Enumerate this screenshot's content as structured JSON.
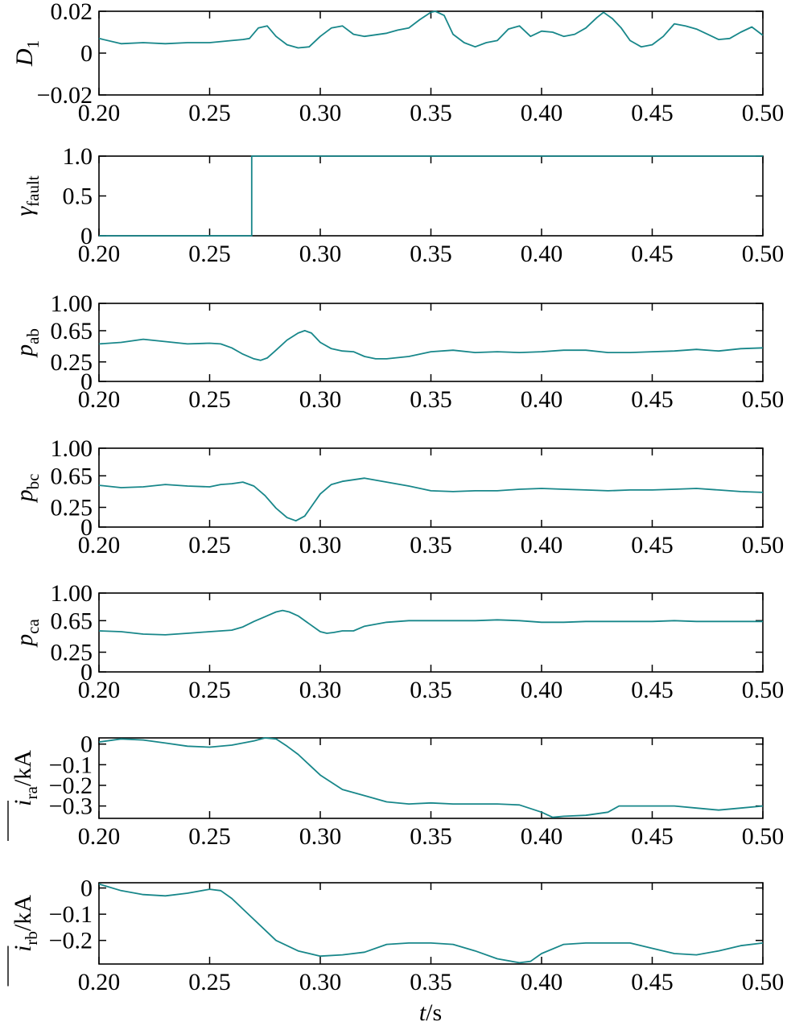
{
  "x_axis_label": {
    "var": "t",
    "unit": "/s"
  },
  "chart_data": [
    {
      "type": "line",
      "name": "D1",
      "ylabel": {
        "main": "D",
        "sub": "1",
        "suffix": ""
      },
      "xlim": [
        0.2,
        0.5
      ],
      "ylim": [
        -0.02,
        0.02
      ],
      "xticks": [
        0.2,
        0.25,
        0.3,
        0.35,
        0.4,
        0.45,
        0.5
      ],
      "xtick_labels": [
        "0.20",
        "0.25",
        "0.30",
        "0.35",
        "0.40",
        "0.45",
        "0.50"
      ],
      "yticks": [
        -0.02,
        0,
        0.02
      ],
      "ytick_labels": [
        "−0.02",
        "0",
        "0.02"
      ],
      "x": [
        0.2,
        0.21,
        0.22,
        0.23,
        0.24,
        0.25,
        0.26,
        0.265,
        0.268,
        0.272,
        0.276,
        0.28,
        0.285,
        0.29,
        0.295,
        0.3,
        0.305,
        0.31,
        0.315,
        0.32,
        0.33,
        0.335,
        0.34,
        0.345,
        0.35,
        0.352,
        0.356,
        0.36,
        0.365,
        0.37,
        0.375,
        0.38,
        0.385,
        0.39,
        0.395,
        0.4,
        0.405,
        0.41,
        0.415,
        0.42,
        0.425,
        0.428,
        0.432,
        0.436,
        0.44,
        0.445,
        0.45,
        0.455,
        0.46,
        0.465,
        0.47,
        0.475,
        0.48,
        0.485,
        0.49,
        0.495,
        0.5
      ],
      "series": [
        {
          "name": "D1",
          "values": [
            0.007,
            0.0045,
            0.005,
            0.0045,
            0.005,
            0.005,
            0.006,
            0.0065,
            0.007,
            0.012,
            0.013,
            0.008,
            0.004,
            0.0025,
            0.003,
            0.008,
            0.012,
            0.013,
            0.009,
            0.008,
            0.0095,
            0.011,
            0.012,
            0.016,
            0.0195,
            0.02,
            0.018,
            0.009,
            0.005,
            0.003,
            0.005,
            0.006,
            0.0115,
            0.013,
            0.008,
            0.0105,
            0.01,
            0.008,
            0.009,
            0.012,
            0.017,
            0.0195,
            0.0165,
            0.012,
            0.006,
            0.003,
            0.004,
            0.008,
            0.014,
            0.013,
            0.0115,
            0.009,
            0.0065,
            0.007,
            0.01,
            0.0125,
            0.0085
          ]
        }
      ]
    },
    {
      "type": "line",
      "name": "gamma_fault",
      "ylabel": {
        "main": "γ",
        "sub": "fault",
        "suffix": ""
      },
      "xlim": [
        0.2,
        0.5
      ],
      "ylim": [
        0,
        1
      ],
      "xticks": [
        0.2,
        0.25,
        0.3,
        0.35,
        0.4,
        0.45,
        0.5
      ],
      "xtick_labels": [
        "0.20",
        "0.25",
        "0.30",
        "0.35",
        "0.40",
        "0.45",
        "0.50"
      ],
      "yticks": [
        0,
        0.5,
        1
      ],
      "ytick_labels": [
        "0",
        "0.5",
        "1.0"
      ],
      "x": [
        0.2,
        0.269,
        0.269,
        0.5
      ],
      "series": [
        {
          "name": "gamma_fault",
          "values": [
            0,
            0,
            1,
            1
          ]
        }
      ]
    },
    {
      "type": "line",
      "name": "p_ab",
      "ylabel": {
        "main": "p",
        "sub": "ab",
        "suffix": ""
      },
      "xlim": [
        0.2,
        0.5
      ],
      "ylim": [
        0,
        1
      ],
      "xticks": [
        0.2,
        0.25,
        0.3,
        0.35,
        0.4,
        0.45,
        0.5
      ],
      "xtick_labels": [
        "0.20",
        "0.25",
        "0.30",
        "0.35",
        "0.40",
        "0.45",
        "0.50"
      ],
      "yticks": [
        0,
        0.25,
        0.65,
        1
      ],
      "ytick_labels": [
        "0",
        "0.25",
        "0.65",
        "1.00"
      ],
      "x": [
        0.2,
        0.21,
        0.22,
        0.23,
        0.24,
        0.25,
        0.255,
        0.26,
        0.265,
        0.27,
        0.273,
        0.276,
        0.28,
        0.285,
        0.29,
        0.293,
        0.296,
        0.3,
        0.305,
        0.31,
        0.315,
        0.32,
        0.325,
        0.33,
        0.34,
        0.35,
        0.36,
        0.37,
        0.38,
        0.39,
        0.4,
        0.41,
        0.42,
        0.43,
        0.44,
        0.45,
        0.46,
        0.47,
        0.48,
        0.49,
        0.5
      ],
      "series": [
        {
          "name": "p_ab",
          "values": [
            0.48,
            0.5,
            0.54,
            0.51,
            0.48,
            0.49,
            0.48,
            0.43,
            0.35,
            0.29,
            0.27,
            0.3,
            0.4,
            0.53,
            0.62,
            0.65,
            0.62,
            0.5,
            0.42,
            0.39,
            0.38,
            0.32,
            0.29,
            0.29,
            0.32,
            0.38,
            0.4,
            0.37,
            0.38,
            0.37,
            0.38,
            0.4,
            0.4,
            0.37,
            0.37,
            0.38,
            0.39,
            0.41,
            0.39,
            0.42,
            0.43
          ]
        }
      ]
    },
    {
      "type": "line",
      "name": "p_bc",
      "ylabel": {
        "main": "p",
        "sub": "bc",
        "suffix": ""
      },
      "xlim": [
        0.2,
        0.5
      ],
      "ylim": [
        0,
        1
      ],
      "xticks": [
        0.2,
        0.25,
        0.3,
        0.35,
        0.4,
        0.45,
        0.5
      ],
      "xtick_labels": [
        "0.20",
        "0.25",
        "0.30",
        "0.35",
        "0.40",
        "0.45",
        "0.50"
      ],
      "yticks": [
        0,
        0.25,
        0.65,
        1
      ],
      "ytick_labels": [
        "0",
        "0.25",
        "0.65",
        "1.00"
      ],
      "x": [
        0.2,
        0.21,
        0.22,
        0.23,
        0.24,
        0.25,
        0.255,
        0.26,
        0.265,
        0.27,
        0.275,
        0.28,
        0.285,
        0.289,
        0.293,
        0.297,
        0.3,
        0.305,
        0.31,
        0.315,
        0.32,
        0.33,
        0.34,
        0.35,
        0.36,
        0.37,
        0.38,
        0.39,
        0.4,
        0.41,
        0.42,
        0.43,
        0.44,
        0.45,
        0.46,
        0.47,
        0.48,
        0.49,
        0.5
      ],
      "series": [
        {
          "name": "p_bc",
          "values": [
            0.53,
            0.5,
            0.51,
            0.54,
            0.52,
            0.51,
            0.54,
            0.55,
            0.57,
            0.52,
            0.4,
            0.24,
            0.12,
            0.08,
            0.14,
            0.3,
            0.42,
            0.54,
            0.58,
            0.6,
            0.62,
            0.57,
            0.52,
            0.46,
            0.45,
            0.46,
            0.46,
            0.48,
            0.49,
            0.48,
            0.47,
            0.46,
            0.47,
            0.47,
            0.48,
            0.49,
            0.47,
            0.45,
            0.44
          ]
        }
      ]
    },
    {
      "type": "line",
      "name": "p_ca",
      "ylabel": {
        "main": "p",
        "sub": "ca",
        "suffix": ""
      },
      "xlim": [
        0.2,
        0.5
      ],
      "ylim": [
        0,
        1
      ],
      "xticks": [
        0.2,
        0.25,
        0.3,
        0.35,
        0.4,
        0.45,
        0.5
      ],
      "xtick_labels": [
        "0.20",
        "0.25",
        "0.30",
        "0.35",
        "0.40",
        "0.45",
        "0.50"
      ],
      "yticks": [
        0,
        0.25,
        0.65,
        1
      ],
      "ytick_labels": [
        "0",
        "0.25",
        "0.65",
        "1.00"
      ],
      "x": [
        0.2,
        0.21,
        0.22,
        0.23,
        0.24,
        0.25,
        0.26,
        0.265,
        0.27,
        0.275,
        0.28,
        0.283,
        0.286,
        0.29,
        0.295,
        0.3,
        0.303,
        0.306,
        0.31,
        0.315,
        0.32,
        0.33,
        0.34,
        0.35,
        0.36,
        0.37,
        0.38,
        0.39,
        0.4,
        0.41,
        0.42,
        0.43,
        0.44,
        0.45,
        0.46,
        0.47,
        0.48,
        0.49,
        0.5
      ],
      "series": [
        {
          "name": "p_ca",
          "values": [
            0.52,
            0.51,
            0.48,
            0.47,
            0.49,
            0.51,
            0.53,
            0.57,
            0.64,
            0.7,
            0.76,
            0.78,
            0.76,
            0.71,
            0.61,
            0.51,
            0.49,
            0.5,
            0.52,
            0.52,
            0.58,
            0.63,
            0.65,
            0.65,
            0.65,
            0.65,
            0.66,
            0.65,
            0.63,
            0.63,
            0.64,
            0.64,
            0.64,
            0.64,
            0.65,
            0.64,
            0.64,
            0.64,
            0.64
          ]
        }
      ]
    },
    {
      "type": "line",
      "name": "i_ra",
      "ylabel": {
        "main": "i",
        "sub": "ra",
        "suffix": "/kA",
        "overline": true
      },
      "xlim": [
        0.2,
        0.5
      ],
      "ylim": [
        -0.36,
        0.03
      ],
      "xticks": [
        0.2,
        0.25,
        0.3,
        0.35,
        0.4,
        0.45,
        0.5
      ],
      "xtick_labels": [
        "0.20",
        "0.25",
        "0.30",
        "0.35",
        "0.40",
        "0.45",
        "0.50"
      ],
      "yticks": [
        -0.3,
        -0.2,
        -0.1,
        0
      ],
      "ytick_labels": [
        "−0.3",
        "−0.2",
        "−0.1",
        "0"
      ],
      "x": [
        0.2,
        0.21,
        0.22,
        0.23,
        0.24,
        0.25,
        0.26,
        0.27,
        0.275,
        0.28,
        0.285,
        0.29,
        0.295,
        0.3,
        0.31,
        0.32,
        0.33,
        0.34,
        0.35,
        0.36,
        0.37,
        0.38,
        0.39,
        0.4,
        0.405,
        0.41,
        0.42,
        0.43,
        0.435,
        0.44,
        0.45,
        0.46,
        0.47,
        0.48,
        0.49,
        0.5
      ],
      "series": [
        {
          "name": "i_ra",
          "values": [
            0.01,
            0.025,
            0.02,
            0.005,
            -0.01,
            -0.015,
            -0.005,
            0.015,
            0.03,
            0.025,
            -0.01,
            -0.05,
            -0.1,
            -0.15,
            -0.22,
            -0.25,
            -0.28,
            -0.29,
            -0.285,
            -0.29,
            -0.29,
            -0.29,
            -0.295,
            -0.33,
            -0.355,
            -0.35,
            -0.345,
            -0.33,
            -0.3,
            -0.3,
            -0.3,
            -0.3,
            -0.31,
            -0.32,
            -0.31,
            -0.3
          ]
        }
      ]
    },
    {
      "type": "line",
      "name": "i_rb",
      "ylabel": {
        "main": "i",
        "sub": "rb",
        "suffix": "/kA",
        "overline": true
      },
      "xlim": [
        0.2,
        0.5
      ],
      "ylim": [
        -0.29,
        0.02
      ],
      "xticks": [
        0.2,
        0.25,
        0.3,
        0.35,
        0.4,
        0.45,
        0.5
      ],
      "xtick_labels": [
        "0.20",
        "0.25",
        "0.30",
        "0.35",
        "0.40",
        "0.45",
        "0.50"
      ],
      "yticks": [
        -0.2,
        -0.1,
        0
      ],
      "ytick_labels": [
        "−0.2",
        "−0.1",
        "0"
      ],
      "x": [
        0.2,
        0.21,
        0.22,
        0.23,
        0.24,
        0.25,
        0.255,
        0.26,
        0.27,
        0.28,
        0.29,
        0.3,
        0.31,
        0.32,
        0.33,
        0.34,
        0.35,
        0.36,
        0.37,
        0.38,
        0.39,
        0.395,
        0.4,
        0.41,
        0.42,
        0.43,
        0.44,
        0.45,
        0.46,
        0.47,
        0.48,
        0.49,
        0.5
      ],
      "series": [
        {
          "name": "i_rb",
          "values": [
            0.015,
            -0.01,
            -0.025,
            -0.03,
            -0.02,
            -0.005,
            -0.01,
            -0.04,
            -0.12,
            -0.2,
            -0.24,
            -0.26,
            -0.255,
            -0.245,
            -0.215,
            -0.21,
            -0.21,
            -0.215,
            -0.24,
            -0.27,
            -0.285,
            -0.28,
            -0.25,
            -0.215,
            -0.21,
            -0.21,
            -0.21,
            -0.23,
            -0.25,
            -0.255,
            -0.24,
            -0.22,
            -0.21
          ]
        }
      ]
    }
  ]
}
